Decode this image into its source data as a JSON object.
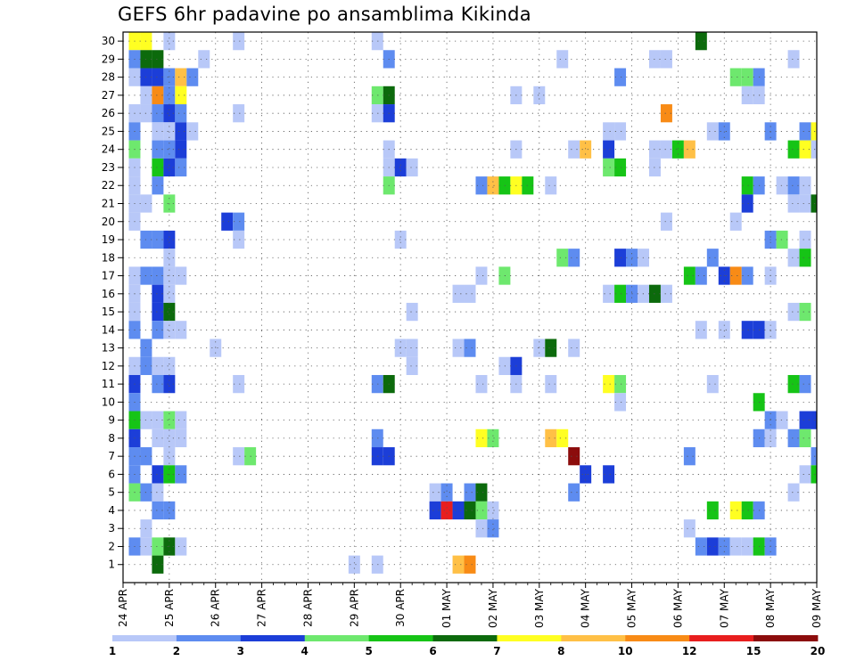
{
  "chart_data": {
    "type": "heatmap",
    "title": "GEFS 6hr padavine po ansamblima Kikinda",
    "x_tick_labels": [
      "24 APR",
      "25 APR",
      "26 APR",
      "27 APR",
      "28 APR",
      "29 APR",
      "30 APR",
      "01 MAY",
      "02 MAY",
      "03 MAY",
      "04 MAY",
      "05 MAY",
      "06 MAY",
      "07 MAY",
      "08 MAY",
      "09 MAY"
    ],
    "y_tick_labels": [
      "1",
      "2",
      "3",
      "4",
      "5",
      "6",
      "7",
      "8",
      "9",
      "10",
      "11",
      "12",
      "13",
      "14",
      "15",
      "16",
      "17",
      "18",
      "19",
      "20",
      "21",
      "22",
      "23",
      "24",
      "25",
      "26",
      "27",
      "28",
      "29",
      "30"
    ],
    "time_steps": 61,
    "members": 30,
    "grid": true,
    "colorbar": {
      "labels": [
        "1",
        "2",
        "3",
        "4",
        "5",
        "6",
        "7",
        "8",
        "10",
        "12",
        "15",
        "20"
      ],
      "colors": [
        "#b8c8f8",
        "#5e8cf0",
        "#1c3ed8",
        "#6ee86e",
        "#16c416",
        "#0c6a0c",
        "#ffff22",
        "#ffc046",
        "#f88b16",
        "#e81e1e",
        "#8c0c0c"
      ]
    },
    "cells": [
      [
        1,
        30,
        6
      ],
      [
        2,
        30,
        6
      ],
      [
        4,
        30,
        0
      ],
      [
        10,
        30,
        0
      ],
      [
        22,
        30,
        0
      ],
      [
        50,
        30,
        5
      ],
      [
        1,
        29,
        1
      ],
      [
        2,
        29,
        5
      ],
      [
        3,
        29,
        5
      ],
      [
        7,
        29,
        0
      ],
      [
        23,
        29,
        1
      ],
      [
        38,
        29,
        0
      ],
      [
        46,
        29,
        0
      ],
      [
        47,
        29,
        0
      ],
      [
        58,
        29,
        0
      ],
      [
        1,
        28,
        0
      ],
      [
        2,
        28,
        2
      ],
      [
        3,
        28,
        2
      ],
      [
        4,
        28,
        1
      ],
      [
        5,
        28,
        7
      ],
      [
        6,
        28,
        1
      ],
      [
        43,
        28,
        1
      ],
      [
        53,
        28,
        3
      ],
      [
        54,
        28,
        3
      ],
      [
        55,
        28,
        1
      ],
      [
        2,
        27,
        0
      ],
      [
        3,
        27,
        8
      ],
      [
        4,
        27,
        1
      ],
      [
        5,
        27,
        6
      ],
      [
        22,
        27,
        3
      ],
      [
        23,
        27,
        5
      ],
      [
        34,
        27,
        0
      ],
      [
        36,
        27,
        0
      ],
      [
        54,
        27,
        0
      ],
      [
        55,
        27,
        0
      ],
      [
        1,
        26,
        0
      ],
      [
        2,
        26,
        0
      ],
      [
        3,
        26,
        1
      ],
      [
        4,
        26,
        2
      ],
      [
        5,
        26,
        1
      ],
      [
        10,
        26,
        0
      ],
      [
        22,
        26,
        0
      ],
      [
        23,
        26,
        2
      ],
      [
        47,
        26,
        8
      ],
      [
        1,
        25,
        1
      ],
      [
        3,
        25,
        0
      ],
      [
        4,
        25,
        0
      ],
      [
        5,
        25,
        2
      ],
      [
        6,
        25,
        0
      ],
      [
        42,
        25,
        0
      ],
      [
        43,
        25,
        0
      ],
      [
        51,
        25,
        0
      ],
      [
        52,
        25,
        1
      ],
      [
        56,
        25,
        1
      ],
      [
        59,
        25,
        1
      ],
      [
        60,
        25,
        6
      ],
      [
        1,
        24,
        3
      ],
      [
        3,
        24,
        1
      ],
      [
        4,
        24,
        1
      ],
      [
        5,
        24,
        2
      ],
      [
        23,
        24,
        0
      ],
      [
        34,
        24,
        0
      ],
      [
        39,
        24,
        0
      ],
      [
        40,
        24,
        7
      ],
      [
        42,
        24,
        2
      ],
      [
        46,
        24,
        0
      ],
      [
        47,
        24,
        0
      ],
      [
        48,
        24,
        4
      ],
      [
        49,
        24,
        7
      ],
      [
        58,
        24,
        4
      ],
      [
        59,
        24,
        6
      ],
      [
        60,
        24,
        0
      ],
      [
        1,
        23,
        0
      ],
      [
        3,
        23,
        4
      ],
      [
        4,
        23,
        2
      ],
      [
        5,
        23,
        1
      ],
      [
        23,
        23,
        0
      ],
      [
        24,
        23,
        2
      ],
      [
        25,
        23,
        0
      ],
      [
        42,
        23,
        3
      ],
      [
        43,
        23,
        4
      ],
      [
        46,
        23,
        0
      ],
      [
        1,
        22,
        0
      ],
      [
        3,
        22,
        1
      ],
      [
        23,
        22,
        3
      ],
      [
        31,
        22,
        1
      ],
      [
        32,
        22,
        7
      ],
      [
        33,
        22,
        4
      ],
      [
        34,
        22,
        6
      ],
      [
        35,
        22,
        4
      ],
      [
        37,
        22,
        0
      ],
      [
        54,
        22,
        4
      ],
      [
        55,
        22,
        1
      ],
      [
        57,
        22,
        0
      ],
      [
        58,
        22,
        1
      ],
      [
        59,
        22,
        0
      ],
      [
        1,
        21,
        0
      ],
      [
        2,
        21,
        0
      ],
      [
        4,
        21,
        3
      ],
      [
        54,
        21,
        2
      ],
      [
        58,
        21,
        0
      ],
      [
        59,
        21,
        0
      ],
      [
        60,
        21,
        5
      ],
      [
        1,
        20,
        0
      ],
      [
        9,
        20,
        2
      ],
      [
        10,
        20,
        1
      ],
      [
        47,
        20,
        0
      ],
      [
        53,
        20,
        0
      ],
      [
        2,
        19,
        1
      ],
      [
        3,
        19,
        1
      ],
      [
        4,
        19,
        2
      ],
      [
        10,
        19,
        0
      ],
      [
        24,
        19,
        0
      ],
      [
        56,
        19,
        1
      ],
      [
        57,
        19,
        3
      ],
      [
        59,
        19,
        0
      ],
      [
        4,
        18,
        0
      ],
      [
        38,
        18,
        3
      ],
      [
        39,
        18,
        1
      ],
      [
        43,
        18,
        2
      ],
      [
        44,
        18,
        1
      ],
      [
        45,
        18,
        0
      ],
      [
        51,
        18,
        1
      ],
      [
        58,
        18,
        0
      ],
      [
        59,
        18,
        4
      ],
      [
        1,
        17,
        0
      ],
      [
        2,
        17,
        1
      ],
      [
        3,
        17,
        1
      ],
      [
        4,
        17,
        0
      ],
      [
        5,
        17,
        0
      ],
      [
        31,
        17,
        0
      ],
      [
        33,
        17,
        3
      ],
      [
        49,
        17,
        4
      ],
      [
        50,
        17,
        1
      ],
      [
        52,
        17,
        2
      ],
      [
        53,
        17,
        8
      ],
      [
        54,
        17,
        1
      ],
      [
        56,
        17,
        0
      ],
      [
        1,
        16,
        0
      ],
      [
        3,
        16,
        2
      ],
      [
        4,
        16,
        0
      ],
      [
        29,
        16,
        0
      ],
      [
        30,
        16,
        0
      ],
      [
        42,
        16,
        0
      ],
      [
        43,
        16,
        4
      ],
      [
        44,
        16,
        1
      ],
      [
        45,
        16,
        0
      ],
      [
        46,
        16,
        5
      ],
      [
        47,
        16,
        0
      ],
      [
        1,
        15,
        0
      ],
      [
        3,
        15,
        2
      ],
      [
        4,
        15,
        5
      ],
      [
        25,
        15,
        0
      ],
      [
        58,
        15,
        0
      ],
      [
        59,
        15,
        3
      ],
      [
        1,
        14,
        1
      ],
      [
        3,
        14,
        1
      ],
      [
        4,
        14,
        0
      ],
      [
        5,
        14,
        0
      ],
      [
        50,
        14,
        0
      ],
      [
        52,
        14,
        0
      ],
      [
        54,
        14,
        2
      ],
      [
        55,
        14,
        2
      ],
      [
        56,
        14,
        0
      ],
      [
        2,
        13,
        1
      ],
      [
        8,
        13,
        0
      ],
      [
        24,
        13,
        0
      ],
      [
        25,
        13,
        0
      ],
      [
        29,
        13,
        0
      ],
      [
        30,
        13,
        1
      ],
      [
        36,
        13,
        0
      ],
      [
        37,
        13,
        5
      ],
      [
        39,
        13,
        0
      ],
      [
        1,
        12,
        0
      ],
      [
        2,
        12,
        1
      ],
      [
        3,
        12,
        0
      ],
      [
        4,
        12,
        0
      ],
      [
        25,
        12,
        0
      ],
      [
        33,
        12,
        0
      ],
      [
        34,
        12,
        2
      ],
      [
        1,
        11,
        2
      ],
      [
        3,
        11,
        1
      ],
      [
        4,
        11,
        2
      ],
      [
        10,
        11,
        0
      ],
      [
        22,
        11,
        1
      ],
      [
        23,
        11,
        5
      ],
      [
        31,
        11,
        0
      ],
      [
        34,
        11,
        0
      ],
      [
        37,
        11,
        0
      ],
      [
        42,
        11,
        6
      ],
      [
        43,
        11,
        3
      ],
      [
        51,
        11,
        0
      ],
      [
        58,
        11,
        4
      ],
      [
        59,
        11,
        1
      ],
      [
        1,
        10,
        1
      ],
      [
        43,
        10,
        0
      ],
      [
        55,
        10,
        4
      ],
      [
        1,
        9,
        4
      ],
      [
        2,
        9,
        0
      ],
      [
        3,
        9,
        0
      ],
      [
        4,
        9,
        3
      ],
      [
        5,
        9,
        0
      ],
      [
        56,
        9,
        1
      ],
      [
        57,
        9,
        0
      ],
      [
        59,
        9,
        2
      ],
      [
        60,
        9,
        2
      ],
      [
        1,
        8,
        2
      ],
      [
        3,
        8,
        0
      ],
      [
        4,
        8,
        0
      ],
      [
        5,
        8,
        0
      ],
      [
        22,
        8,
        1
      ],
      [
        31,
        8,
        6
      ],
      [
        32,
        8,
        3
      ],
      [
        37,
        8,
        7
      ],
      [
        38,
        8,
        6
      ],
      [
        55,
        8,
        1
      ],
      [
        56,
        8,
        0
      ],
      [
        58,
        8,
        1
      ],
      [
        59,
        8,
        3
      ],
      [
        1,
        7,
        1
      ],
      [
        2,
        7,
        1
      ],
      [
        4,
        7,
        0
      ],
      [
        10,
        7,
        0
      ],
      [
        11,
        7,
        3
      ],
      [
        22,
        7,
        2
      ],
      [
        23,
        7,
        2
      ],
      [
        39,
        7,
        10
      ],
      [
        49,
        7,
        1
      ],
      [
        60,
        7,
        1
      ],
      [
        1,
        6,
        1
      ],
      [
        3,
        6,
        2
      ],
      [
        4,
        6,
        4
      ],
      [
        5,
        6,
        1
      ],
      [
        40,
        6,
        2
      ],
      [
        42,
        6,
        2
      ],
      [
        59,
        6,
        0
      ],
      [
        60,
        6,
        4
      ],
      [
        1,
        5,
        3
      ],
      [
        2,
        5,
        1
      ],
      [
        3,
        5,
        0
      ],
      [
        27,
        5,
        0
      ],
      [
        28,
        5,
        1
      ],
      [
        30,
        5,
        1
      ],
      [
        31,
        5,
        5
      ],
      [
        39,
        5,
        1
      ],
      [
        58,
        5,
        0
      ],
      [
        3,
        4,
        1
      ],
      [
        4,
        4,
        1
      ],
      [
        27,
        4,
        2
      ],
      [
        28,
        4,
        9
      ],
      [
        29,
        4,
        2
      ],
      [
        30,
        4,
        5
      ],
      [
        31,
        4,
        3
      ],
      [
        32,
        4,
        0
      ],
      [
        51,
        4,
        4
      ],
      [
        53,
        4,
        6
      ],
      [
        54,
        4,
        4
      ],
      [
        55,
        4,
        1
      ],
      [
        2,
        3,
        0
      ],
      [
        31,
        3,
        0
      ],
      [
        32,
        3,
        1
      ],
      [
        49,
        3,
        0
      ],
      [
        1,
        2,
        1
      ],
      [
        2,
        2,
        0
      ],
      [
        3,
        2,
        3
      ],
      [
        4,
        2,
        5
      ],
      [
        5,
        2,
        0
      ],
      [
        50,
        2,
        1
      ],
      [
        51,
        2,
        2
      ],
      [
        52,
        2,
        1
      ],
      [
        53,
        2,
        0
      ],
      [
        54,
        2,
        0
      ],
      [
        55,
        2,
        4
      ],
      [
        56,
        2,
        1
      ],
      [
        3,
        1,
        5
      ],
      [
        20,
        1,
        0
      ],
      [
        22,
        1,
        0
      ],
      [
        29,
        1,
        7
      ],
      [
        30,
        1,
        8
      ]
    ]
  }
}
